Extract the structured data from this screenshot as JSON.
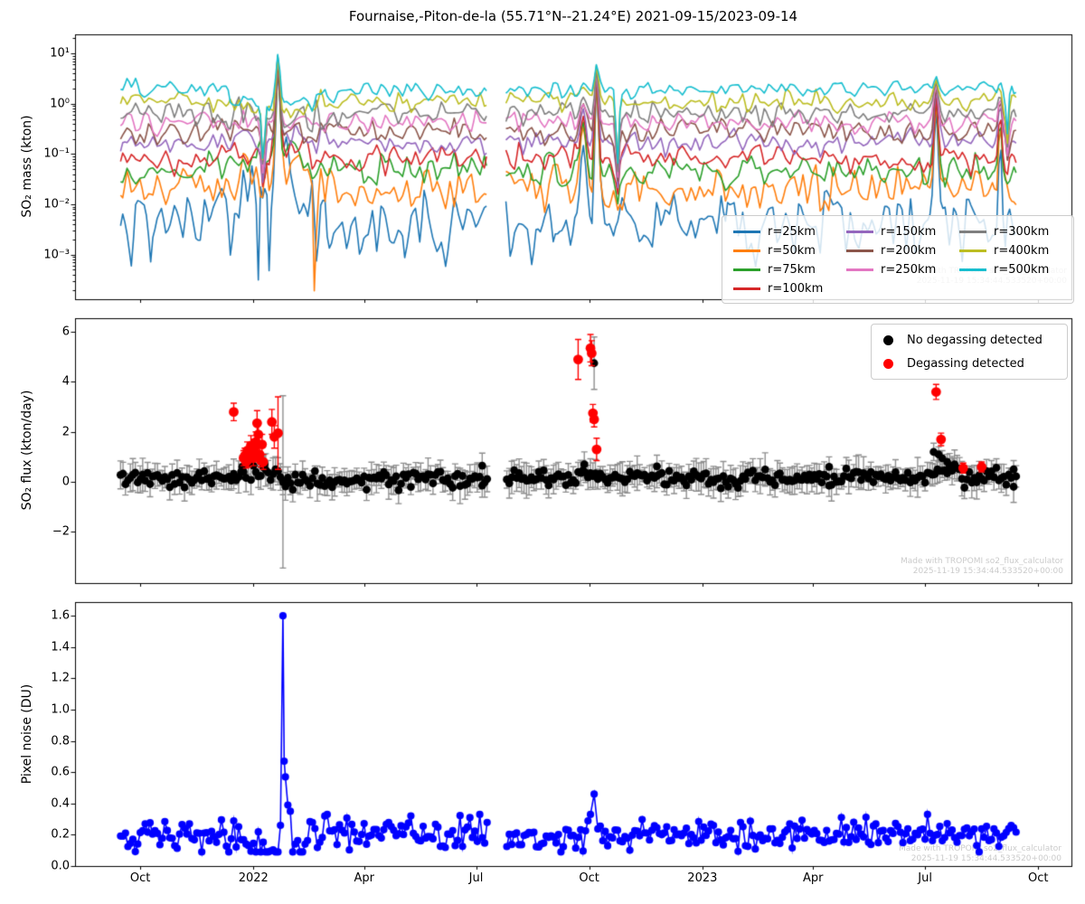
{
  "figure": {
    "title": "Fournaise,-Piton-de-la (55.71°N--21.24°E) 2021-09-15/2023-09-14",
    "watermark": {
      "line1": "Made with TROPOMI so2_flux_calculator",
      "line2": "2025-11-19 15:34:44.533520+00:00",
      "color": "#cbcbcb"
    },
    "background": "#ffffff"
  },
  "axes": {
    "x_tick_labels": [
      "Oct",
      "2022",
      "Apr",
      "Jul",
      "Oct",
      "2023",
      "Apr",
      "Jul",
      "Oct"
    ],
    "x_tick_days": [
      0,
      92,
      182,
      273,
      365,
      457,
      547,
      638,
      730
    ],
    "x_range_days": [
      -53,
      757
    ],
    "data_range_days": [
      -16,
      713
    ],
    "gap_days": [
      283,
      297
    ]
  },
  "chart_data": [
    {
      "id": "so2-mass",
      "type": "line",
      "yscale": "log",
      "ylabel": "SO₂ mass (kton)",
      "ylim": [
        0.00013,
        24
      ],
      "ytick_labels": [
        "10¹",
        "10⁰",
        "10⁻¹",
        "10⁻²",
        "10⁻³"
      ],
      "ytick_values": [
        10,
        1,
        0.1,
        0.01,
        0.001
      ],
      "legend_columns": [
        [
          0,
          1,
          2,
          3
        ],
        [
          4,
          5,
          6
        ],
        [
          7,
          8,
          9
        ]
      ],
      "series": [
        {
          "label": "r=25km",
          "color": "#1f77b4",
          "baseline": 0.004,
          "noise_dex": 0.38
        },
        {
          "label": "r=50km",
          "color": "#ff7f0e",
          "baseline": 0.02,
          "noise_dex": 0.22
        },
        {
          "label": "r=75km",
          "color": "#2ca02c",
          "baseline": 0.045,
          "noise_dex": 0.18
        },
        {
          "label": "r=100km",
          "color": "#d62728",
          "baseline": 0.08,
          "noise_dex": 0.16
        },
        {
          "label": "r=150km",
          "color": "#9467bd",
          "baseline": 0.17,
          "noise_dex": 0.14
        },
        {
          "label": "r=200km",
          "color": "#8c564b",
          "baseline": 0.28,
          "noise_dex": 0.13
        },
        {
          "label": "r=250km",
          "color": "#e377c2",
          "baseline": 0.42,
          "noise_dex": 0.12
        },
        {
          "label": "r=300km",
          "color": "#7f7f7f",
          "baseline": 0.65,
          "noise_dex": 0.12
        },
        {
          "label": "r=400km",
          "color": "#bcbd22",
          "baseline": 1.15,
          "noise_dex": 0.11
        },
        {
          "label": "r=500km",
          "color": "#17becf",
          "baseline": 1.95,
          "noise_dex": 0.1
        }
      ],
      "events_converge": [
        {
          "day": 110,
          "sigma": 27,
          "peak": 0.35,
          "strength": 0.4
        },
        {
          "day": 100,
          "sigma": 1.2,
          "peak": 0.004,
          "strength": 0.5
        },
        {
          "day": 112,
          "sigma": 1.6,
          "peak": 14,
          "strength": 0.85
        },
        {
          "day": 360,
          "sigma": 2.5,
          "peak": 3.2,
          "strength": 0.55
        },
        {
          "day": 371,
          "sigma": 1.5,
          "peak": 7.0,
          "strength": 0.88
        },
        {
          "day": 388,
          "sigma": 1.2,
          "peak": 0.004,
          "strength": 0.55
        },
        {
          "day": 647,
          "sigma": 1.7,
          "peak": 4.4,
          "strength": 0.75
        },
        {
          "day": 699,
          "sigma": 1.3,
          "peak": 4.0,
          "strength": 0.55
        },
        {
          "day": 705,
          "sigma": 1.1,
          "peak": 0.02,
          "strength": 0.45
        }
      ],
      "series_dips": [
        {
          "series": 0,
          "day": 8,
          "value": 0.0004
        },
        {
          "series": 0,
          "day": 96,
          "value": 0.0002
        },
        {
          "series": 0,
          "day": 105,
          "value": 0.0003
        },
        {
          "series": 1,
          "day": 142,
          "value": 3e-05
        },
        {
          "series": 0,
          "day": 215,
          "value": 0.0008
        },
        {
          "series": 0,
          "day": 340,
          "value": 0.0015
        },
        {
          "series": 0,
          "day": 475,
          "value": 0.0018
        }
      ],
      "noisy_window": {
        "days": [
          70,
          152
        ],
        "factor": 1.9
      }
    },
    {
      "id": "so2-flux",
      "type": "scatter-errorbar",
      "ylabel": "SO₂ flux (kton/day)",
      "ylim": [
        -4.05,
        6.55
      ],
      "ytick_labels": [
        "6",
        "4",
        "2",
        "0",
        "−2"
      ],
      "ytick_values": [
        6,
        4,
        2,
        0,
        -2
      ],
      "marker_colors": {
        "no_degassing": "#000000",
        "degassing": "#ff0000",
        "errorbar": "#8f8f8f"
      },
      "legend": [
        {
          "label": "No degassing detected",
          "color": "#000000"
        },
        {
          "label": "Degassing detected",
          "color": "#ff0000"
        }
      ],
      "baseline": {
        "mean": 0.12,
        "sd": 0.17,
        "clip": [
          -0.35,
          0.75
        ],
        "err_mean": 0.45,
        "err_sd": 0.12,
        "step_days": 2
      },
      "elevated_windows": [
        {
          "days": [
            75,
            115
          ],
          "add": 0.22
        },
        {
          "days": [
            352,
            374
          ],
          "add": 0.18
        },
        {
          "days": [
            640,
            666
          ],
          "add": 0.3
        }
      ],
      "black_outliers": [
        [
          116,
          0.0,
          3.45
        ],
        [
          369,
          4.75,
          1.05
        ],
        [
          361,
          0.7,
          0.5
        ],
        [
          83,
          0.6,
          0.45
        ],
        [
          101,
          0.7,
          0.4
        ],
        [
          645,
          1.2,
          0.35
        ],
        [
          649,
          1.1,
          0.3
        ],
        [
          652,
          0.95,
          0.3
        ],
        [
          656,
          0.8,
          0.3
        ],
        [
          661,
          0.65,
          0.3
        ],
        [
          420,
          0.62,
          0.45
        ],
        [
          560,
          0.6,
          0.4
        ],
        [
          278,
          0.65,
          0.5
        ],
        [
          710,
          0.5,
          0.35
        ]
      ],
      "red_points": [
        [
          76,
          2.8,
          0.35
        ],
        [
          84,
          0.95,
          0.3
        ],
        [
          85,
          1.05,
          0.3
        ],
        [
          86,
          0.8,
          0.25
        ],
        [
          87,
          1.25,
          0.35
        ],
        [
          88,
          0.9,
          0.3
        ],
        [
          89,
          1.15,
          0.3
        ],
        [
          90,
          1.45,
          0.4
        ],
        [
          91,
          1.2,
          0.3
        ],
        [
          92,
          0.95,
          0.3
        ],
        [
          93,
          1.35,
          0.35
        ],
        [
          94,
          1.6,
          0.4
        ],
        [
          95,
          2.35,
          0.5
        ],
        [
          96,
          1.9,
          0.45
        ],
        [
          97,
          1.1,
          0.3
        ],
        [
          98,
          0.85,
          0.25
        ],
        [
          99,
          1.5,
          0.4
        ],
        [
          100,
          0.8,
          0.3
        ],
        [
          107,
          2.4,
          0.5
        ],
        [
          109,
          1.8,
          0.45
        ],
        [
          112,
          1.95,
          1.45
        ],
        [
          356,
          4.9,
          0.8
        ],
        [
          366,
          5.35,
          0.55
        ],
        [
          367,
          5.15,
          0.5
        ],
        [
          368,
          2.75,
          0.35
        ],
        [
          369,
          2.5,
          0.3
        ],
        [
          371,
          1.3,
          0.45
        ],
        [
          647,
          3.6,
          0.3
        ],
        [
          651,
          1.7,
          0.25
        ],
        [
          669,
          0.55,
          0.2
        ],
        [
          684,
          0.6,
          0.2
        ]
      ]
    },
    {
      "id": "pixel-noise",
      "type": "scatter-line",
      "ylabel": "Pixel noise (DU)",
      "color": "#0000ff",
      "ylim": [
        0,
        1.688
      ],
      "ytick_labels": [
        "0.0",
        "0.2",
        "0.4",
        "0.6",
        "0.8",
        "1.0",
        "1.2",
        "1.4",
        "1.6"
      ],
      "ytick_values": [
        0.0,
        0.2,
        0.4,
        0.6,
        0.8,
        1.0,
        1.2,
        1.4,
        1.6
      ],
      "baseline": {
        "mean": 0.2,
        "sd": 0.05,
        "clip": [
          0.09,
          0.33
        ],
        "step_days": 2
      },
      "low_window": {
        "days": [
          85,
          135
        ],
        "mean": 0.13
      },
      "outliers": [
        [
          114,
          0.26
        ],
        [
          116,
          1.6
        ],
        [
          117,
          0.67
        ],
        [
          118,
          0.57
        ],
        [
          120,
          0.39
        ],
        [
          122,
          0.35
        ],
        [
          150,
          0.32
        ],
        [
          366,
          0.33
        ],
        [
          369,
          0.46
        ],
        [
          640,
          0.33
        ]
      ]
    }
  ]
}
